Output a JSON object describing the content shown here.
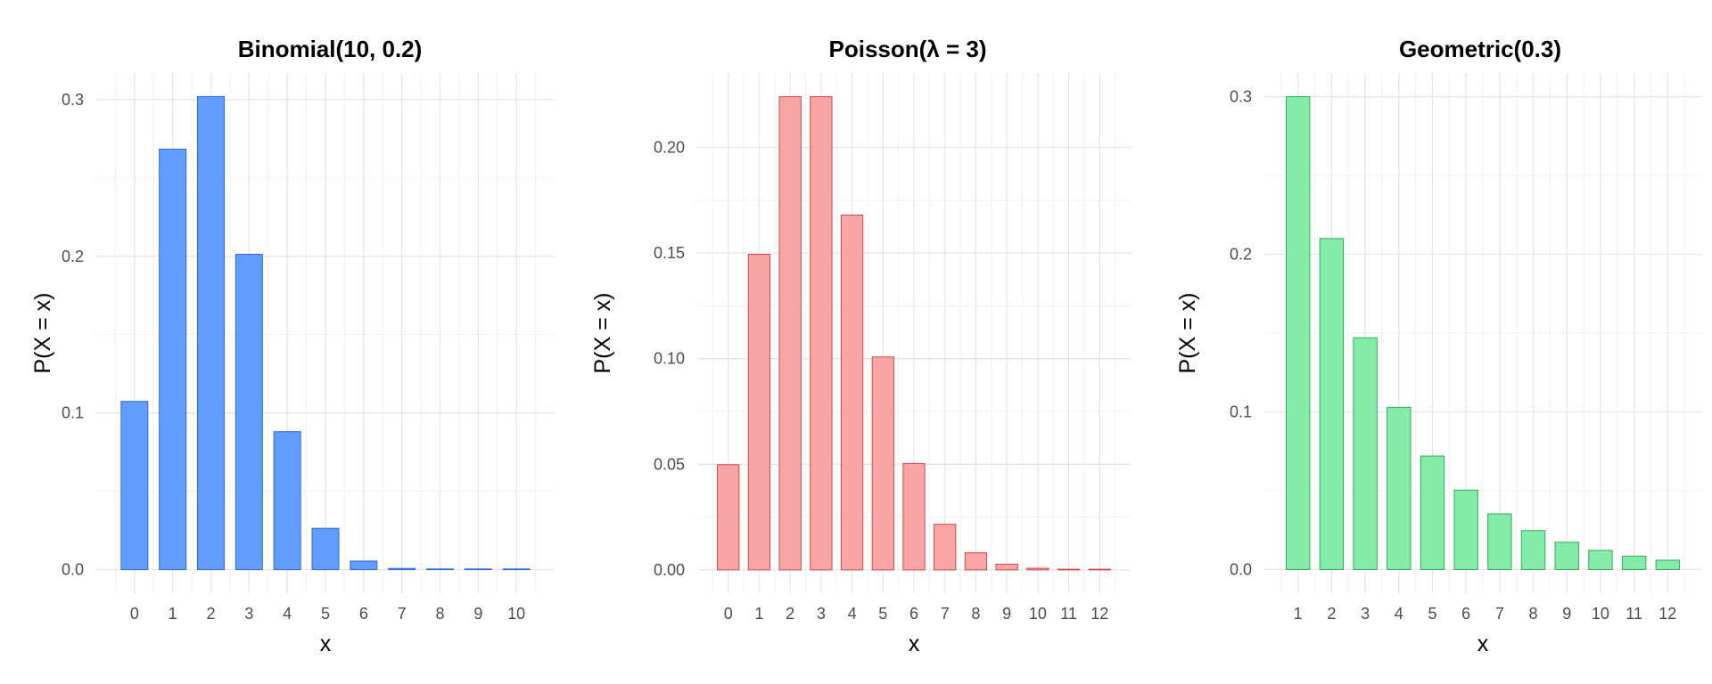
{
  "chart_data": [
    {
      "type": "bar",
      "title": "Binomial(10, 0.2)",
      "xlabel": "x",
      "ylabel": "P(X = x)",
      "categories": [
        "0",
        "1",
        "2",
        "3",
        "4",
        "5",
        "6",
        "7",
        "8",
        "9",
        "10"
      ],
      "values": [
        0.1074,
        0.2684,
        0.302,
        0.2013,
        0.0881,
        0.0264,
        0.0055,
        0.0008,
        0.0001,
        0.0,
        0.0
      ],
      "ylim": [
        -0.015,
        0.317
      ],
      "yticks": [
        0,
        0.1,
        0.2,
        0.3
      ],
      "ytick_labels": [
        "0.0",
        "0.1",
        "0.2",
        "0.3"
      ],
      "grid": true,
      "fill_color": "#619CFF",
      "stroke_color": "#2F6ADB"
    },
    {
      "type": "bar",
      "title": "Poisson(λ = 3)",
      "xlabel": "x",
      "ylabel": "P(X = x)",
      "categories": [
        "0",
        "1",
        "2",
        "3",
        "4",
        "5",
        "6",
        "7",
        "8",
        "9",
        "10",
        "11",
        "12"
      ],
      "values": [
        0.0498,
        0.1494,
        0.224,
        0.224,
        0.168,
        0.1008,
        0.0504,
        0.0216,
        0.0081,
        0.0027,
        0.0008,
        0.0002,
        0.0001
      ],
      "ylim": [
        -0.011,
        0.2352
      ],
      "yticks": [
        0,
        0.05,
        0.1,
        0.15,
        0.2
      ],
      "ytick_labels": [
        "0.00",
        "0.05",
        "0.10",
        "0.15",
        "0.20"
      ],
      "grid": true,
      "fill_color": "#F8A5A5",
      "stroke_color": "#D0484A"
    },
    {
      "type": "bar",
      "title": "Geometric(0.3)",
      "xlabel": "x",
      "ylabel": "P(X = x)",
      "categories": [
        "1",
        "2",
        "3",
        "4",
        "5",
        "6",
        "7",
        "8",
        "9",
        "10",
        "11",
        "12"
      ],
      "values": [
        0.3,
        0.21,
        0.147,
        0.1029,
        0.072,
        0.0504,
        0.0353,
        0.0247,
        0.0173,
        0.0121,
        0.0085,
        0.0059
      ],
      "ylim": [
        -0.015,
        0.315
      ],
      "yticks": [
        0,
        0.1,
        0.2,
        0.3
      ],
      "ytick_labels": [
        "0.0",
        "0.1",
        "0.2",
        "0.3"
      ],
      "grid": true,
      "fill_color": "#85EBA8",
      "stroke_color": "#2FAE5A"
    }
  ]
}
